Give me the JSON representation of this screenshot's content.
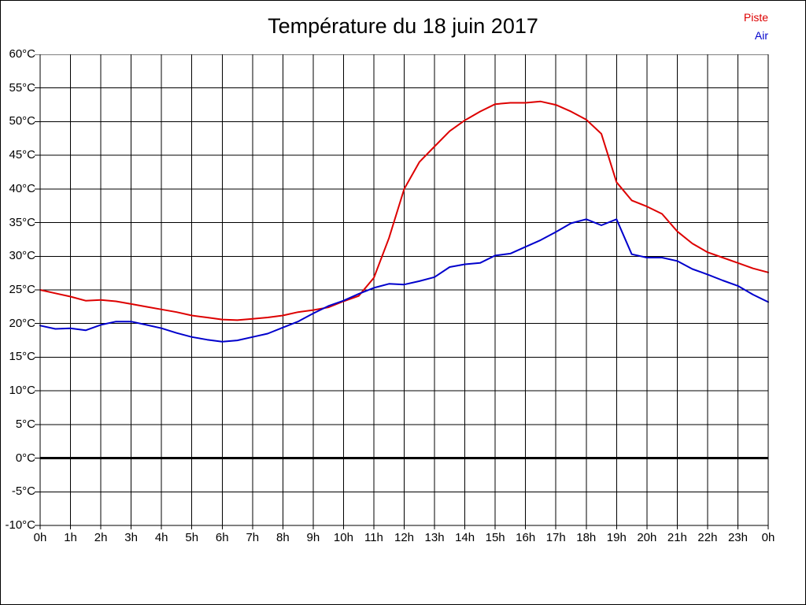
{
  "figure": {
    "title": "Température du 18 juin 2017",
    "background_color": "#ffffff",
    "border_color": "#000000"
  },
  "legend": {
    "position": "top-right",
    "items": [
      {
        "label": "Piste",
        "color": "#dd0000"
      },
      {
        "label": "Air",
        "color": "#0000cc"
      }
    ]
  },
  "chart_data": {
    "type": "line",
    "title": "Température du 18 juin 2017",
    "xlabel": "",
    "ylabel": "",
    "x_unit": "hour of day",
    "y_unit": "°C",
    "grid": true,
    "xlim": [
      0,
      24
    ],
    "ylim": [
      -10,
      60
    ],
    "x_ticks": [
      0,
      1,
      2,
      3,
      4,
      5,
      6,
      7,
      8,
      9,
      10,
      11,
      12,
      13,
      14,
      15,
      16,
      17,
      18,
      19,
      20,
      21,
      22,
      23,
      24
    ],
    "x_tick_labels": [
      "0h",
      "1h",
      "2h",
      "3h",
      "4h",
      "5h",
      "6h",
      "7h",
      "8h",
      "9h",
      "10h",
      "11h",
      "12h",
      "13h",
      "14h",
      "15h",
      "16h",
      "17h",
      "18h",
      "19h",
      "20h",
      "21h",
      "22h",
      "23h",
      "0h"
    ],
    "y_ticks": [
      60,
      55,
      50,
      45,
      40,
      35,
      30,
      25,
      20,
      15,
      10,
      5,
      0,
      -5,
      -10
    ],
    "y_tick_labels": [
      "60°C",
      "55°C",
      "50°C",
      "45°C",
      "40°C",
      "35°C",
      "30°C",
      "25°C",
      "20°C",
      "15°C",
      "10°C",
      "5°C",
      "0°C",
      "-5°C",
      "-10°C"
    ],
    "zero_line": {
      "value": 0,
      "color": "#000000",
      "width": 3
    },
    "x": [
      0,
      0.5,
      1,
      1.5,
      2,
      2.5,
      3,
      3.5,
      4,
      4.5,
      5,
      5.5,
      6,
      6.5,
      7,
      7.5,
      8,
      8.5,
      9,
      9.5,
      10,
      10.5,
      11,
      11.5,
      12,
      12.5,
      13,
      13.5,
      14,
      14.5,
      15,
      15.5,
      16,
      16.5,
      17,
      17.5,
      18,
      18.5,
      19,
      19.5,
      20,
      20.5,
      21,
      21.5,
      22,
      22.5,
      23,
      23.5,
      24
    ],
    "series": [
      {
        "name": "Piste",
        "color": "#dd0000",
        "values": [
          25.0,
          24.5,
          24.0,
          23.4,
          23.5,
          23.3,
          22.9,
          22.5,
          22.1,
          21.7,
          21.2,
          20.9,
          20.6,
          20.5,
          20.7,
          20.9,
          21.2,
          21.7,
          22.0,
          22.4,
          23.3,
          24.1,
          26.8,
          32.7,
          40.0,
          44.0,
          46.3,
          48.6,
          50.2,
          51.5,
          52.6,
          52.8,
          52.8,
          53.0,
          52.5,
          51.5,
          50.3,
          48.2,
          41.0,
          38.3,
          37.4,
          36.3,
          33.7,
          31.9,
          30.6,
          29.8,
          29.0,
          28.2,
          27.6
        ]
      },
      {
        "name": "Air",
        "color": "#0000cc",
        "values": [
          19.7,
          19.2,
          19.3,
          19.0,
          19.8,
          20.3,
          20.3,
          19.8,
          19.3,
          18.6,
          18.0,
          17.6,
          17.3,
          17.5,
          18.0,
          18.5,
          19.4,
          20.3,
          21.5,
          22.6,
          23.4,
          24.4,
          25.3,
          25.9,
          25.8,
          26.3,
          26.9,
          28.4,
          28.8,
          29.0,
          30.1,
          30.4,
          31.4,
          32.4,
          33.6,
          34.9,
          35.5,
          34.6,
          35.5,
          30.3,
          29.8,
          29.8,
          29.3,
          28.1,
          27.3,
          26.4,
          25.6,
          24.3,
          23.2
        ]
      }
    ]
  }
}
